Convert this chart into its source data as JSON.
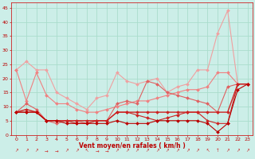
{
  "x": [
    0,
    1,
    2,
    3,
    4,
    5,
    6,
    7,
    8,
    9,
    10,
    11,
    12,
    13,
    14,
    15,
    16,
    17,
    18,
    19,
    20,
    21,
    22,
    23
  ],
  "line_max_gust": [
    23,
    26,
    23,
    23,
    15,
    13,
    11,
    9,
    13,
    14,
    22,
    19,
    18,
    19,
    20,
    15,
    17,
    18,
    23,
    23,
    36,
    44,
    18,
    18
  ],
  "line_max_mean": [
    23,
    12,
    22,
    14,
    11,
    11,
    9,
    8,
    8,
    9,
    10,
    11,
    12,
    12,
    13,
    14,
    15,
    16,
    16,
    17,
    22,
    22,
    18,
    18
  ],
  "line_mid": [
    8,
    11,
    9,
    5,
    4,
    5,
    5,
    4,
    5,
    5,
    11,
    12,
    11,
    19,
    18,
    15,
    14,
    13,
    12,
    11,
    8,
    17,
    18,
    18
  ],
  "line_p50_gust": [
    8,
    9,
    8,
    5,
    5,
    5,
    5,
    5,
    5,
    5,
    8,
    8,
    8,
    8,
    8,
    8,
    8,
    8,
    8,
    8,
    8,
    8,
    18,
    18
  ],
  "line_p50_mean": [
    8,
    8,
    8,
    5,
    5,
    5,
    4,
    4,
    5,
    5,
    8,
    8,
    7,
    6,
    5,
    6,
    7,
    8,
    8,
    5,
    4,
    4,
    18,
    18
  ],
  "line_min": [
    8,
    8,
    8,
    5,
    5,
    4,
    4,
    4,
    4,
    4,
    5,
    4,
    4,
    4,
    5,
    5,
    5,
    5,
    5,
    4,
    1,
    4,
    16,
    18
  ],
  "color_vlight": "#f0a0a0",
  "color_light": "#f08080",
  "color_mid": "#e06060",
  "color_dark": "#cc2222",
  "color_darkest": "#bb0000",
  "bg_color": "#cceee8",
  "grid_color": "#aaddcc",
  "xlabel": "Vent moyen/en rafales ( km/h )",
  "ylim": [
    0,
    47
  ],
  "xlim": [
    -0.5,
    23.5
  ],
  "yticks": [
    0,
    5,
    10,
    15,
    20,
    25,
    30,
    35,
    40,
    45
  ],
  "xticks": [
    0,
    1,
    2,
    3,
    4,
    5,
    6,
    7,
    8,
    9,
    10,
    11,
    12,
    13,
    14,
    15,
    16,
    17,
    18,
    19,
    20,
    21,
    22,
    23
  ],
  "arrows": [
    "↗",
    "↗",
    "↗",
    "→",
    "→",
    "↗",
    "↗",
    "↖",
    "→",
    "→",
    "↗",
    "↗",
    "↗",
    "↗",
    "↗",
    "↗",
    "↗",
    "↗",
    "↗",
    "↖",
    "↑",
    "↗",
    "↗",
    "↗"
  ]
}
